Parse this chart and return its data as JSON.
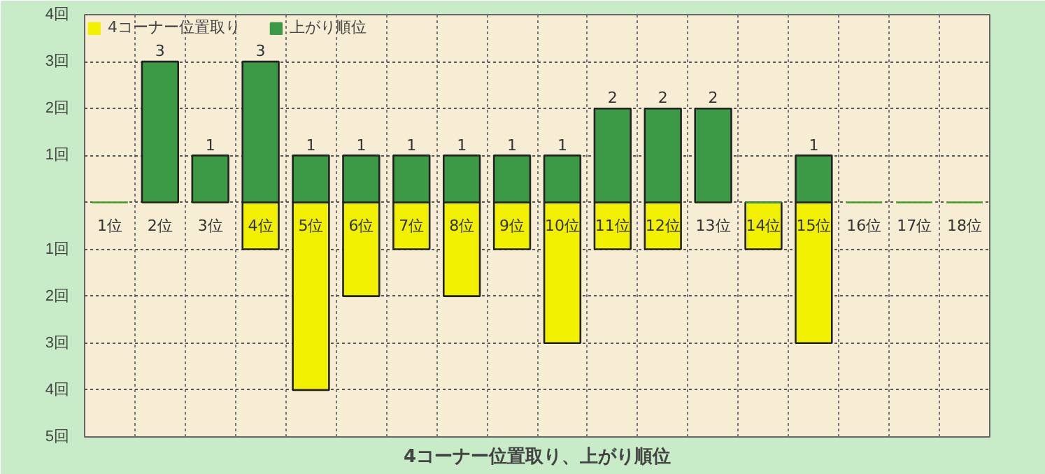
{
  "chart_data": {
    "type": "bar",
    "title": "4コーナー位置取り、上がり順位",
    "categories": [
      "1位",
      "2位",
      "3位",
      "4位",
      "5位",
      "6位",
      "7位",
      "8位",
      "9位",
      "10位",
      "11位",
      "12位",
      "13位",
      "14位",
      "15位",
      "16位",
      "17位",
      "18位"
    ],
    "series": [
      {
        "name": "4コーナー位置取り",
        "color": "#f0f000",
        "values": [
          0,
          0,
          0,
          -1,
          -4,
          -2,
          -1,
          -2,
          -1,
          -3,
          -1,
          -1,
          0,
          -1,
          -3,
          0,
          0,
          0
        ]
      },
      {
        "name": "上がり順位",
        "color": "#3c9a46",
        "values": [
          0,
          3,
          1,
          3,
          1,
          1,
          1,
          1,
          1,
          1,
          2,
          2,
          2,
          0,
          1,
          0,
          0,
          0
        ],
        "value_labels": [
          null,
          "3",
          "1",
          "3",
          "1",
          "1",
          "1",
          "1",
          "1",
          "1",
          "2",
          "2",
          "2",
          null,
          "1",
          null,
          null,
          null
        ]
      }
    ],
    "ylim": [
      -5,
      4
    ],
    "yticks": [
      {
        "value": -5,
        "label": "5回"
      },
      {
        "value": -4,
        "label": "4回"
      },
      {
        "value": -3,
        "label": "3回"
      },
      {
        "value": -2,
        "label": "2回"
      },
      {
        "value": -1,
        "label": "1回"
      },
      {
        "value": 0,
        "label": null
      },
      {
        "value": 1,
        "label": "1回"
      },
      {
        "value": 2,
        "label": "2回"
      },
      {
        "value": 3,
        "label": "3回"
      },
      {
        "value": 4,
        "label": "4回"
      }
    ],
    "grid": true,
    "legend": "top left",
    "stacked": true
  }
}
